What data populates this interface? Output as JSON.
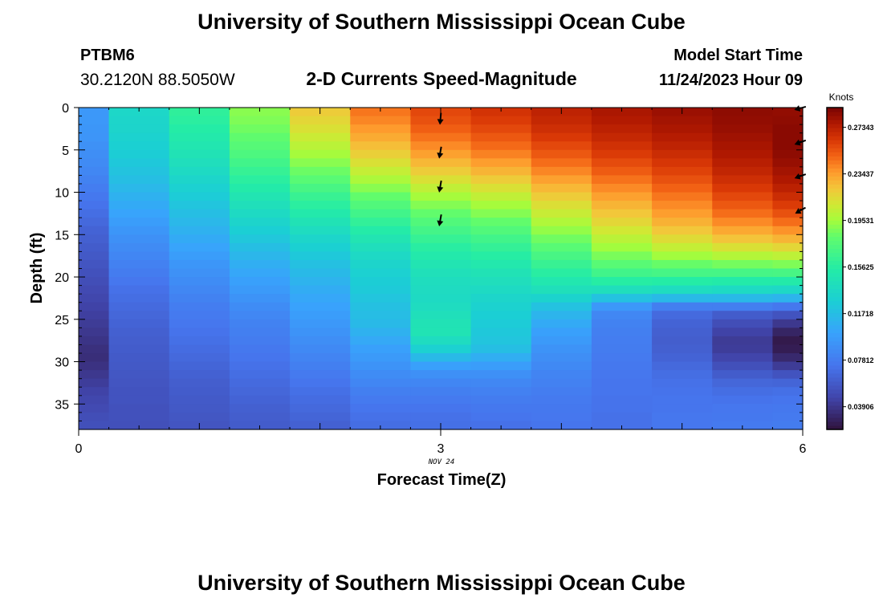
{
  "header": {
    "title": "University of Southern Mississippi Ocean Cube",
    "station_id": "PTBM6",
    "coordinates": "30.2120N  88.5050W",
    "plot_title": "2-D Currents Speed-Magnitude",
    "model_label": "Model Start Time",
    "model_time": "11/24/2023 Hour 09"
  },
  "footer": {
    "title": "University of Southern Mississippi Ocean Cube"
  },
  "chart_data": {
    "type": "heatmap",
    "xlabel": "Forecast Time(Z)",
    "ylabel": "Depth (ft)",
    "x_ticks": [
      "0",
      "3",
      "6"
    ],
    "x_sublabel": "NOV 24",
    "y_ticks": [
      "0",
      "5",
      "10",
      "15",
      "20",
      "25",
      "30",
      "35"
    ],
    "xlim": [
      0,
      6
    ],
    "ylim": [
      0,
      38
    ],
    "colorbar": {
      "title": "Knots",
      "min": 0.02,
      "max": 0.29,
      "ticks": [
        "0.03906",
        "0.07812",
        "0.11718",
        "0.15625",
        "0.19531",
        "0.23437",
        "0.27343"
      ]
    },
    "depths": [
      0,
      1,
      2,
      3,
      4,
      5,
      6,
      7,
      8,
      9,
      10,
      11,
      12,
      13,
      14,
      15,
      16,
      17,
      18,
      19,
      20,
      21,
      22,
      23,
      24,
      25,
      26,
      27,
      28,
      29,
      30,
      31,
      32,
      33,
      34,
      35,
      36,
      37
    ],
    "time_columns": [
      {
        "x0": 0.0,
        "x1": 0.25,
        "knots": [
          0.095,
          0.095,
          0.094,
          0.093,
          0.091,
          0.089,
          0.087,
          0.085,
          0.082,
          0.079,
          0.076,
          0.073,
          0.07,
          0.067,
          0.064,
          0.062,
          0.06,
          0.058,
          0.056,
          0.054,
          0.052,
          0.05,
          0.048,
          0.046,
          0.044,
          0.042,
          0.04,
          0.038,
          0.036,
          0.035,
          0.037,
          0.04,
          0.043,
          0.046,
          0.048,
          0.05,
          0.052,
          0.053
        ]
      },
      {
        "x0": 0.25,
        "x1": 0.75,
        "knots": [
          0.135,
          0.134,
          0.133,
          0.131,
          0.129,
          0.127,
          0.124,
          0.121,
          0.118,
          0.114,
          0.11,
          0.106,
          0.102,
          0.098,
          0.094,
          0.09,
          0.087,
          0.084,
          0.081,
          0.078,
          0.075,
          0.072,
          0.07,
          0.068,
          0.066,
          0.064,
          0.062,
          0.061,
          0.06,
          0.059,
          0.058,
          0.057,
          0.056,
          0.055,
          0.055,
          0.054,
          0.054,
          0.053
        ]
      },
      {
        "x0": 0.75,
        "x1": 1.25,
        "knots": [
          0.16,
          0.158,
          0.155,
          0.152,
          0.149,
          0.146,
          0.142,
          0.138,
          0.134,
          0.13,
          0.126,
          0.122,
          0.118,
          0.114,
          0.11,
          0.106,
          0.102,
          0.098,
          0.094,
          0.091,
          0.088,
          0.085,
          0.082,
          0.079,
          0.077,
          0.075,
          0.073,
          0.071,
          0.069,
          0.067,
          0.065,
          0.063,
          0.061,
          0.06,
          0.059,
          0.058,
          0.057,
          0.056
        ]
      },
      {
        "x0": 1.25,
        "x1": 1.75,
        "knots": [
          0.19,
          0.188,
          0.185,
          0.181,
          0.177,
          0.173,
          0.168,
          0.163,
          0.158,
          0.153,
          0.148,
          0.143,
          0.138,
          0.133,
          0.128,
          0.123,
          0.118,
          0.113,
          0.108,
          0.104,
          0.1,
          0.096,
          0.092,
          0.088,
          0.085,
          0.082,
          0.08,
          0.078,
          0.076,
          0.074,
          0.072,
          0.07,
          0.068,
          0.066,
          0.064,
          0.062,
          0.061,
          0.06
        ]
      },
      {
        "x0": 1.75,
        "x1": 2.25,
        "knots": [
          0.22,
          0.216,
          0.212,
          0.207,
          0.202,
          0.196,
          0.19,
          0.184,
          0.178,
          0.171,
          0.164,
          0.158,
          0.152,
          0.146,
          0.14,
          0.134,
          0.129,
          0.124,
          0.119,
          0.115,
          0.111,
          0.107,
          0.104,
          0.101,
          0.098,
          0.095,
          0.092,
          0.089,
          0.086,
          0.083,
          0.08,
          0.077,
          0.074,
          0.071,
          0.069,
          0.067,
          0.065,
          0.063
        ]
      },
      {
        "x0": 2.25,
        "x1": 2.75,
        "knots": [
          0.245,
          0.241,
          0.236,
          0.231,
          0.225,
          0.219,
          0.212,
          0.205,
          0.198,
          0.19,
          0.182,
          0.175,
          0.168,
          0.161,
          0.154,
          0.148,
          0.142,
          0.137,
          0.133,
          0.13,
          0.127,
          0.125,
          0.122,
          0.119,
          0.117,
          0.115,
          0.11,
          0.105,
          0.1,
          0.096,
          0.092,
          0.088,
          0.084,
          0.08,
          0.077,
          0.074,
          0.072,
          0.07
        ]
      },
      {
        "x0": 2.75,
        "x1": 3.25,
        "knots": [
          0.258,
          0.255,
          0.251,
          0.246,
          0.24,
          0.234,
          0.227,
          0.22,
          0.212,
          0.204,
          0.196,
          0.189,
          0.182,
          0.175,
          0.169,
          0.163,
          0.157,
          0.152,
          0.148,
          0.144,
          0.141,
          0.139,
          0.138,
          0.14,
          0.143,
          0.146,
          0.147,
          0.14,
          0.13,
          0.115,
          0.1,
          0.09,
          0.084,
          0.08,
          0.077,
          0.074,
          0.072,
          0.071
        ]
      },
      {
        "x0": 3.25,
        "x1": 3.75,
        "knots": [
          0.265,
          0.262,
          0.258,
          0.253,
          0.248,
          0.242,
          0.235,
          0.228,
          0.22,
          0.212,
          0.204,
          0.196,
          0.189,
          0.182,
          0.175,
          0.168,
          0.162,
          0.156,
          0.151,
          0.146,
          0.142,
          0.138,
          0.134,
          0.131,
          0.128,
          0.126,
          0.124,
          0.122,
          0.118,
          0.108,
          0.098,
          0.09,
          0.085,
          0.081,
          0.078,
          0.076,
          0.074,
          0.072
        ]
      },
      {
        "x0": 3.75,
        "x1": 4.25,
        "knots": [
          0.272,
          0.27,
          0.267,
          0.263,
          0.258,
          0.253,
          0.247,
          0.241,
          0.234,
          0.227,
          0.22,
          0.213,
          0.206,
          0.199,
          0.192,
          0.185,
          0.178,
          0.171,
          0.164,
          0.157,
          0.15,
          0.143,
          0.132,
          0.12,
          0.112,
          0.106,
          0.1,
          0.096,
          0.092,
          0.089,
          0.086,
          0.083,
          0.081,
          0.079,
          0.077,
          0.076,
          0.075,
          0.074
        ]
      },
      {
        "x0": 4.25,
        "x1": 4.75,
        "knots": [
          0.278,
          0.276,
          0.273,
          0.27,
          0.266,
          0.262,
          0.257,
          0.252,
          0.246,
          0.24,
          0.234,
          0.228,
          0.222,
          0.216,
          0.209,
          0.202,
          0.195,
          0.187,
          0.178,
          0.168,
          0.156,
          0.142,
          0.12,
          0.095,
          0.085,
          0.082,
          0.08,
          0.079,
          0.078,
          0.077,
          0.076,
          0.075,
          0.074,
          0.074,
          0.073,
          0.073,
          0.072,
          0.072
        ]
      },
      {
        "x0": 4.75,
        "x1": 5.25,
        "knots": [
          0.282,
          0.28,
          0.278,
          0.275,
          0.272,
          0.268,
          0.264,
          0.26,
          0.255,
          0.25,
          0.245,
          0.24,
          0.235,
          0.229,
          0.222,
          0.214,
          0.205,
          0.195,
          0.183,
          0.17,
          0.155,
          0.14,
          0.115,
          0.08,
          0.068,
          0.064,
          0.062,
          0.061,
          0.062,
          0.064,
          0.067,
          0.07,
          0.072,
          0.073,
          0.074,
          0.074,
          0.075,
          0.075
        ]
      },
      {
        "x0": 5.25,
        "x1": 5.75,
        "knots": [
          0.285,
          0.284,
          0.283,
          0.281,
          0.279,
          0.277,
          0.274,
          0.271,
          0.267,
          0.263,
          0.258,
          0.253,
          0.247,
          0.24,
          0.232,
          0.223,
          0.212,
          0.2,
          0.186,
          0.17,
          0.153,
          0.138,
          0.115,
          0.08,
          0.06,
          0.052,
          0.046,
          0.042,
          0.043,
          0.047,
          0.053,
          0.06,
          0.066,
          0.07,
          0.073,
          0.075,
          0.076,
          0.077
        ]
      },
      {
        "x0": 5.75,
        "x1": 6.0,
        "knots": [
          0.284,
          0.285,
          0.286,
          0.286,
          0.286,
          0.285,
          0.283,
          0.28,
          0.277,
          0.273,
          0.268,
          0.262,
          0.255,
          0.247,
          0.238,
          0.228,
          0.216,
          0.203,
          0.188,
          0.171,
          0.153,
          0.136,
          0.112,
          0.076,
          0.055,
          0.04,
          0.03,
          0.024,
          0.026,
          0.032,
          0.042,
          0.055,
          0.065,
          0.071,
          0.074,
          0.076,
          0.077,
          0.078
        ]
      }
    ],
    "vectors": [
      {
        "x": 3.0,
        "depth": 1.0,
        "angle_deg": 95
      },
      {
        "x": 3.0,
        "depth": 5.0,
        "angle_deg": 100
      },
      {
        "x": 3.0,
        "depth": 9.0,
        "angle_deg": 100
      },
      {
        "x": 3.0,
        "depth": 13.0,
        "angle_deg": 100
      },
      {
        "x": 6.0,
        "depth": 0.0,
        "angle_deg": 165
      },
      {
        "x": 6.0,
        "depth": 4.0,
        "angle_deg": 160
      },
      {
        "x": 6.0,
        "depth": 8.0,
        "angle_deg": 160
      },
      {
        "x": 6.0,
        "depth": 12.0,
        "angle_deg": 150
      }
    ]
  }
}
